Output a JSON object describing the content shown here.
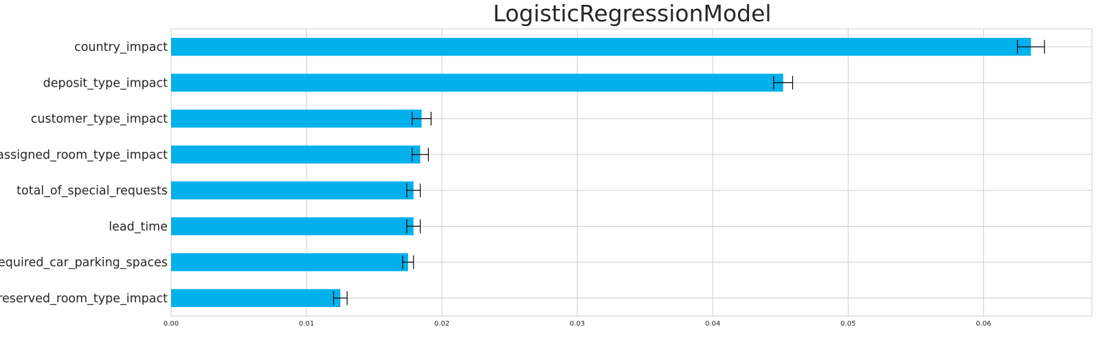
{
  "chart_data": {
    "type": "bar",
    "orientation": "horizontal",
    "title": "LogisticRegressionModel",
    "xlabel": "",
    "ylabel": "",
    "xlim": [
      0,
      0.068
    ],
    "xticks": [
      "0.00",
      "0.01",
      "0.02",
      "0.03",
      "0.04",
      "0.05",
      "0.06"
    ],
    "grid": true,
    "legend": "none",
    "categories": [
      "country_impact",
      "deposit_type_impact",
      "customer_type_impact",
      "assigned_room_type_impact",
      "total_of_special_requests",
      "lead_time",
      "required_car_parking_spaces",
      "reserved_room_type_impact"
    ],
    "values": [
      0.0635,
      0.0452,
      0.0185,
      0.0184,
      0.0179,
      0.0179,
      0.0175,
      0.0125
    ],
    "errors": [
      0.001,
      0.0007,
      0.0007,
      0.0006,
      0.0005,
      0.0005,
      0.0004,
      0.0005
    ],
    "colors": {
      "bar": "#02b0eb",
      "grid": "#cccccc",
      "errorbar": "#000000",
      "text": "#262626"
    }
  }
}
